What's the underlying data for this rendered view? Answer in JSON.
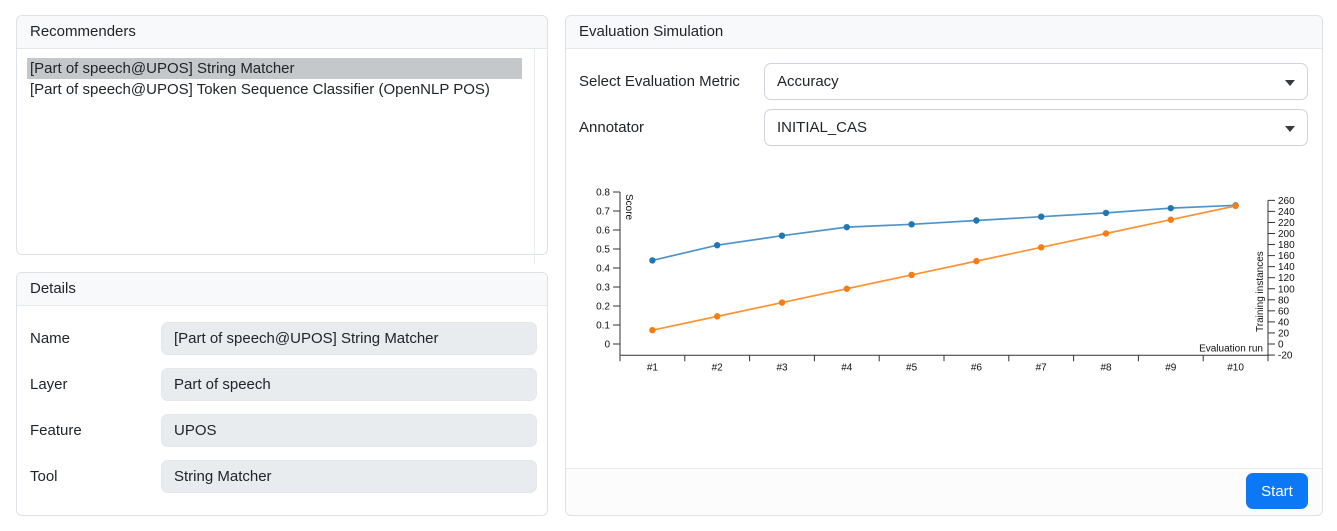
{
  "recommenders_panel": {
    "title": "Recommenders",
    "items": [
      {
        "label": "[Part of speech@UPOS] String Matcher",
        "selected": true
      },
      {
        "label": "[Part of speech@UPOS] Token Sequence Classifier (OpenNLP POS)",
        "selected": false
      }
    ]
  },
  "details_panel": {
    "title": "Details",
    "fields": [
      {
        "label": "Name",
        "value": "[Part of speech@UPOS] String Matcher"
      },
      {
        "label": "Layer",
        "value": "Part of speech"
      },
      {
        "label": "Feature",
        "value": "UPOS"
      },
      {
        "label": "Tool",
        "value": "String Matcher"
      }
    ]
  },
  "evaluation_panel": {
    "title": "Evaluation Simulation",
    "metric": {
      "label": "Select Evaluation Metric",
      "value": "Accuracy"
    },
    "annotator": {
      "label": "Annotator",
      "value": "INITIAL_CAS"
    },
    "start_label": "Start"
  },
  "colors": {
    "accent_blue": "#0d78f5",
    "selected_item_bg": "#c5c8ca",
    "disabled_input_bg": "#e9ecef",
    "card_border": "#dee2e6",
    "series_score_line": "#4e94ca",
    "series_score_point": "#1f77b4",
    "series_instances_line": "#ff9233",
    "series_instances_point": "#f57d11"
  },
  "chart_data": {
    "type": "line",
    "categories": [
      "#1",
      "#2",
      "#3",
      "#4",
      "#5",
      "#6",
      "#7",
      "#8",
      "#9",
      "#10"
    ],
    "series": [
      {
        "name": "Score",
        "axis": "left",
        "line_color": "#4e94ca",
        "point_color": "#1f77b4",
        "values": [
          0.44,
          0.52,
          0.57,
          0.615,
          0.63,
          0.65,
          0.67,
          0.69,
          0.715,
          0.73
        ]
      },
      {
        "name": "Training instances",
        "axis": "right",
        "line_color": "#ff9233",
        "point_color": "#f57d11",
        "values": [
          25,
          50,
          75,
          100,
          125,
          150,
          175,
          200,
          225,
          250
        ]
      }
    ],
    "left_axis": {
      "label": "Score",
      "min": 0,
      "max": 0.8,
      "tick_step": 0.1,
      "ticks": [
        "0",
        "0.1",
        "0.2",
        "0.3",
        "0.4",
        "0.5",
        "0.6",
        "0.7",
        "0.8"
      ]
    },
    "right_axis": {
      "label": "Training instances",
      "min": -20,
      "max": 260,
      "tick_step": 20,
      "ticks": [
        "-20",
        "0",
        "20",
        "40",
        "60",
        "80",
        "100",
        "120",
        "140",
        "160",
        "180",
        "200",
        "220",
        "240",
        "260"
      ]
    },
    "x_label": "Evaluation run",
    "grid": false,
    "legend": "none"
  }
}
